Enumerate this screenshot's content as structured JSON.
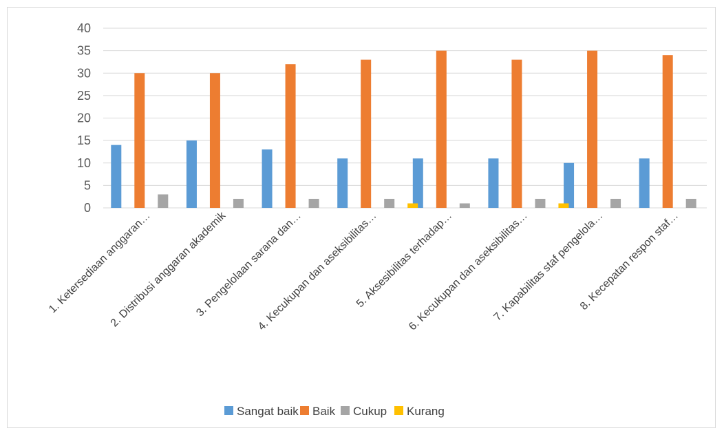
{
  "chart_data": {
    "type": "bar",
    "title": "",
    "xlabel": "",
    "ylabel": "",
    "ylim": [
      0,
      40
    ],
    "yticks": [
      0,
      5,
      10,
      15,
      20,
      25,
      30,
      35,
      40
    ],
    "grid": true,
    "legend_position": "bottom",
    "categories": [
      "1.  Ketersediaan anggaran…",
      "2.  Distribusi anggaran akademik",
      "3.  Pengelolaan sarana dan…",
      "4.  Kecukupan dan aseksibilitas…",
      "5.  Aksesibilitas terhadap…",
      "6.  Kecukupan dan aseksibilitas…",
      "7. Kapabilitas staf pengelola…",
      "8.  Kecepatan respon staf…"
    ],
    "series": [
      {
        "name": "Sangat baik",
        "color": "#5b9bd5",
        "values": [
          14,
          15,
          13,
          11,
          11,
          11,
          10,
          11
        ]
      },
      {
        "name": "Baik",
        "color": "#ed7d31",
        "values": [
          30,
          30,
          32,
          33,
          35,
          33,
          35,
          34
        ]
      },
      {
        "name": "Cukup",
        "color": "#a5a5a5",
        "values": [
          3,
          2,
          2,
          2,
          1,
          2,
          2,
          2
        ]
      },
      {
        "name": "Kurang",
        "color": "#ffc000",
        "values": [
          0,
          0,
          0,
          1,
          0,
          1,
          0,
          0
        ]
      }
    ]
  }
}
